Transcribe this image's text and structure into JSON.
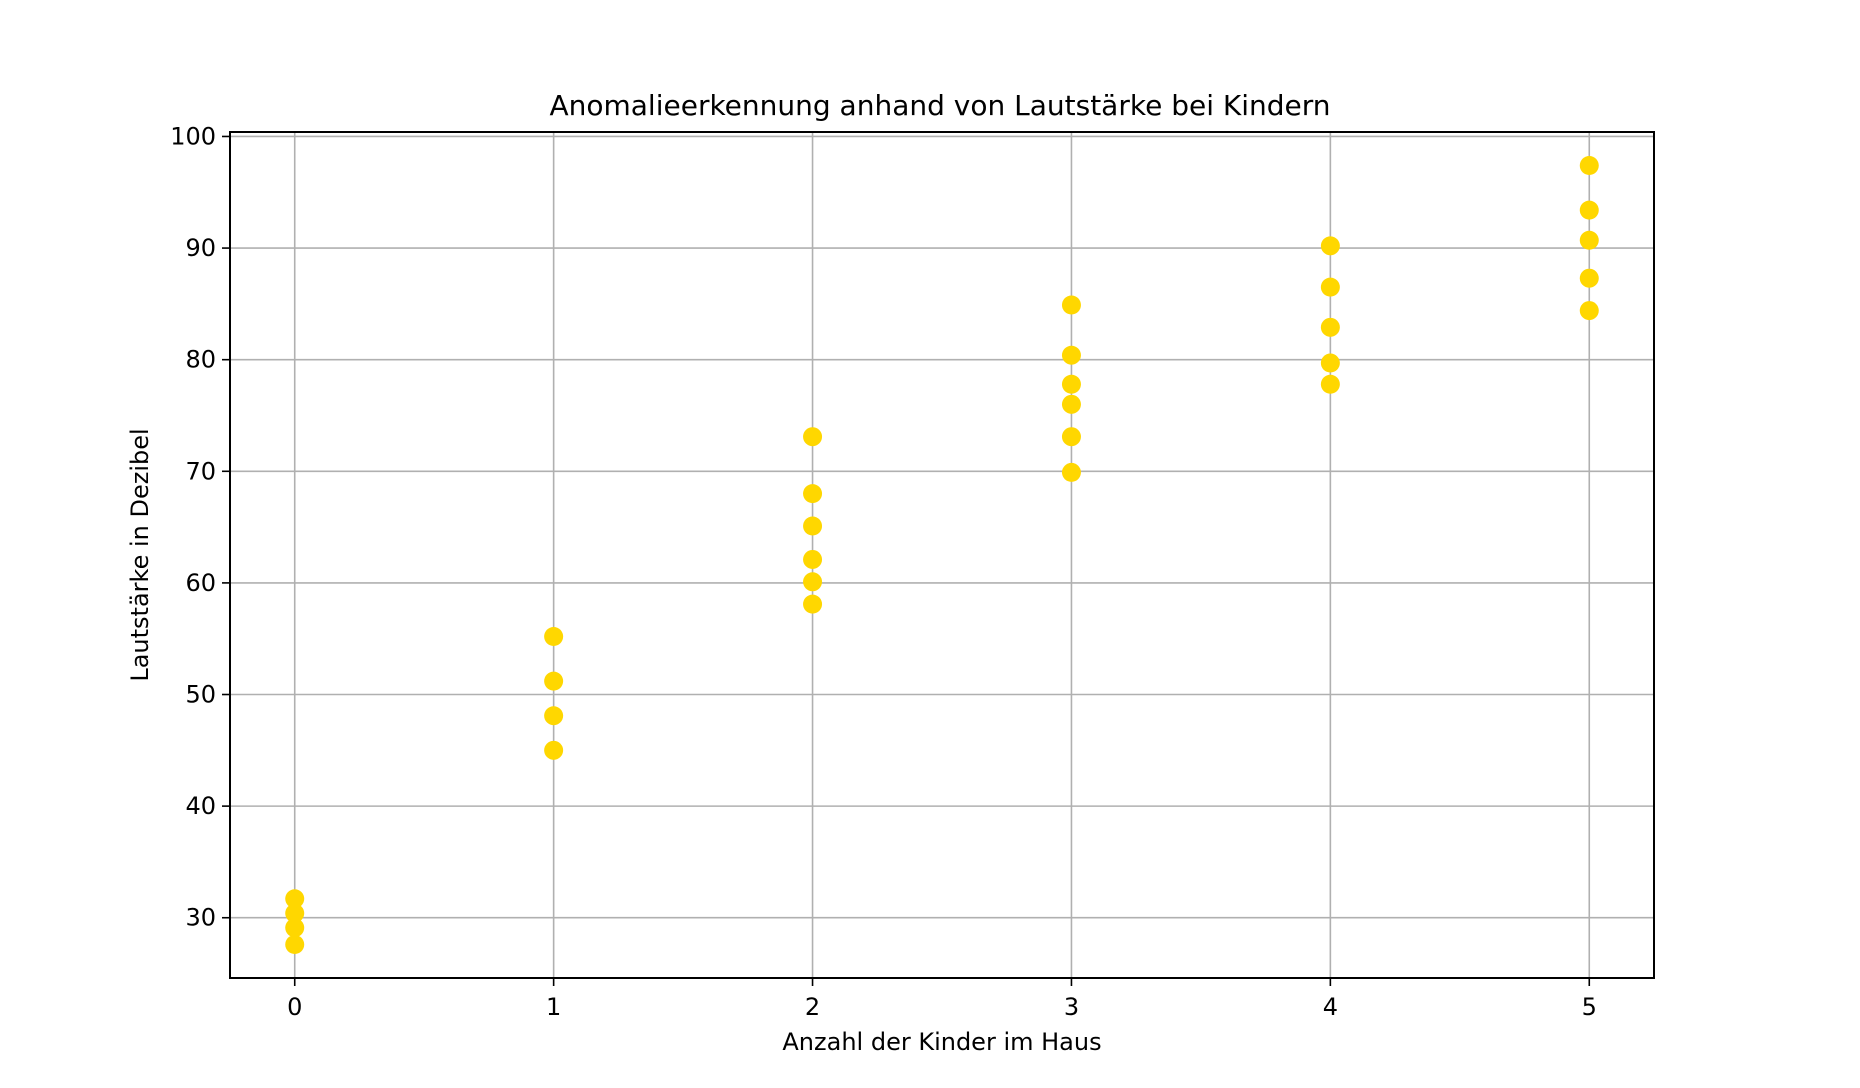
{
  "chart_data": {
    "type": "scatter",
    "title": "Anomalieerkennung anhand von Lautstärke bei Kindern",
    "xlabel": "Anzahl der Kinder im Haus",
    "ylabel": "Lautstärke in Dezibel",
    "xlim": [
      -0.25,
      5.25
    ],
    "ylim": [
      24.6,
      100.4
    ],
    "xticks": [
      0,
      1,
      2,
      3,
      4,
      5
    ],
    "yticks": [
      30,
      40,
      50,
      60,
      70,
      80,
      90,
      100
    ],
    "grid": true,
    "marker_color": "#FFD700",
    "points": [
      {
        "x": 0,
        "y": 31.7
      },
      {
        "x": 0,
        "y": 30.4
      },
      {
        "x": 0,
        "y": 29.1
      },
      {
        "x": 0,
        "y": 27.6
      },
      {
        "x": 1,
        "y": 55.2
      },
      {
        "x": 1,
        "y": 51.2
      },
      {
        "x": 1,
        "y": 48.1
      },
      {
        "x": 1,
        "y": 45.0
      },
      {
        "x": 2,
        "y": 73.1
      },
      {
        "x": 2,
        "y": 68.0
      },
      {
        "x": 2,
        "y": 65.1
      },
      {
        "x": 2,
        "y": 62.1
      },
      {
        "x": 2,
        "y": 60.1
      },
      {
        "x": 2,
        "y": 58.1
      },
      {
        "x": 3,
        "y": 84.9
      },
      {
        "x": 3,
        "y": 80.4
      },
      {
        "x": 3,
        "y": 77.8
      },
      {
        "x": 3,
        "y": 76.0
      },
      {
        "x": 3,
        "y": 73.1
      },
      {
        "x": 3,
        "y": 69.9
      },
      {
        "x": 4,
        "y": 90.2
      },
      {
        "x": 4,
        "y": 86.5
      },
      {
        "x": 4,
        "y": 82.9
      },
      {
        "x": 4,
        "y": 79.7
      },
      {
        "x": 4,
        "y": 77.8
      },
      {
        "x": 5,
        "y": 97.4
      },
      {
        "x": 5,
        "y": 93.4
      },
      {
        "x": 5,
        "y": 90.7
      },
      {
        "x": 5,
        "y": 87.3
      },
      {
        "x": 5,
        "y": 84.4
      }
    ]
  }
}
